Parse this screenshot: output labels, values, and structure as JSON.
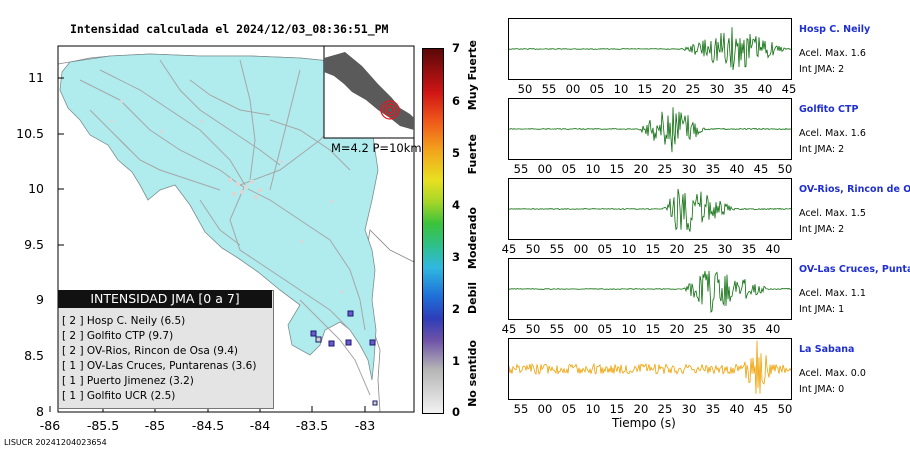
{
  "title": "Intensidad calculada el 2024/12/03_08:36:51_PM",
  "footer_id": "LISUCR 20241204023654",
  "map": {
    "y_ticks": [
      "11",
      "10.5",
      "10",
      "9.5",
      "9",
      "8.5",
      "8"
    ],
    "x_ticks": [
      "-86",
      "-85.5",
      "-85",
      "-84.5",
      "-84",
      "-83.5",
      "-83"
    ],
    "inset_label": "M=4.2 P=10km",
    "colors": {
      "land": "#b0ecee",
      "ocean": "#ffffff",
      "roads": "#a9a9a9",
      "epicenter": "#e8141c"
    }
  },
  "colorbar": {
    "ticks": [
      "7",
      "6",
      "5",
      "4",
      "3",
      "2",
      "1",
      "0"
    ],
    "labels": [
      "Muy Fuerte",
      "Fuerte",
      "Moderado",
      "Debil",
      "No sentido"
    ]
  },
  "legend": {
    "title": "INTENSIDAD JMA [0 a 7]",
    "items": [
      "[ 2 ]  Hosp C. Neily (6.5)",
      "[ 2 ]  Golfito CTP (9.7)",
      "[ 2 ]  OV-Rios, Rincon de Osa (9.4)",
      "[ 1 ]  OV-Las Cruces, Puntarenas (3.6)",
      "[ 1 ]  Puerto Jimenez (3.2)",
      "[ 1 ]  Golfito UCR (2.5)"
    ]
  },
  "stations": [
    {
      "name": "Hosp C. Neily",
      "acel": "Acel. Max. 1.6",
      "int": "Int JMA: 2",
      "ticks": [
        "50",
        "55",
        "00",
        "05",
        "10",
        "15",
        "20",
        "25",
        "30",
        "35",
        "40",
        "45"
      ],
      "color": "#0a6d0a"
    },
    {
      "name": "Golfito CTP",
      "acel": "Acel. Max. 1.6",
      "int": "Int JMA: 2",
      "ticks": [
        "55",
        "00",
        "05",
        "10",
        "15",
        "20",
        "25",
        "30",
        "35",
        "40",
        "45",
        "50"
      ],
      "color": "#0a6d0a"
    },
    {
      "name": "OV-Rios, Rincon de Os",
      "acel": "Acel. Max. 1.5",
      "int": "Int JMA: 2",
      "ticks": [
        "45",
        "50",
        "55",
        "00",
        "05",
        "10",
        "15",
        "20",
        "25",
        "30",
        "35",
        "40"
      ],
      "color": "#0a6d0a"
    },
    {
      "name": "OV-Las Cruces, Puntar",
      "acel": "Acel. Max. 1.1",
      "int": "Int JMA: 1",
      "ticks": [
        "45",
        "50",
        "55",
        "00",
        "05",
        "10",
        "15",
        "20",
        "25",
        "30",
        "35",
        "40"
      ],
      "color": "#0a6d0a"
    },
    {
      "name": "La Sabana",
      "acel": "Acel. Max. 0.0",
      "int": "Int JMA: 0",
      "ticks": [
        "55",
        "00",
        "05",
        "10",
        "15",
        "20",
        "25",
        "30",
        "35",
        "40",
        "45",
        "50"
      ],
      "color": "#f0a000"
    }
  ],
  "x_axis_title": "Tiempo (s)"
}
